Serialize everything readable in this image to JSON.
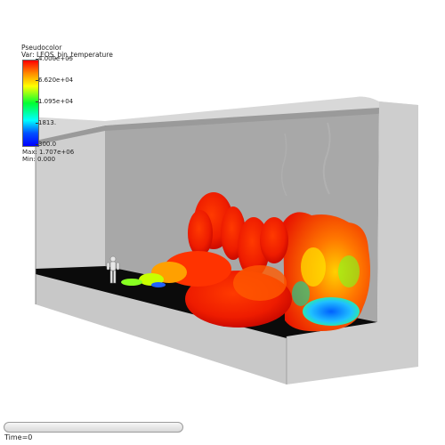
{
  "legend": {
    "title_line1": "Pseudocolor",
    "title_line2": "Var: LEOS_bin_temperature",
    "ticks": [
      "4.000e+05",
      "6.620e+04",
      "1.095e+04",
      "1813.",
      "300.0"
    ],
    "max_label": "Max: 1.707e+06",
    "min_label": "Min: 0.000",
    "colormap": [
      "#ff0000",
      "#ff8a00",
      "#ffff00",
      "#00ff33",
      "#00ffff",
      "#0050ff",
      "#0000ff"
    ]
  },
  "time_slider": {
    "label": "Time=0",
    "progress": 0
  },
  "colors": {
    "wall": "#cfcfcf",
    "back_wall": "#a6a6a6",
    "floor": "#0a0a0a"
  },
  "icons": {
    "figure": "human-figure-icon"
  }
}
